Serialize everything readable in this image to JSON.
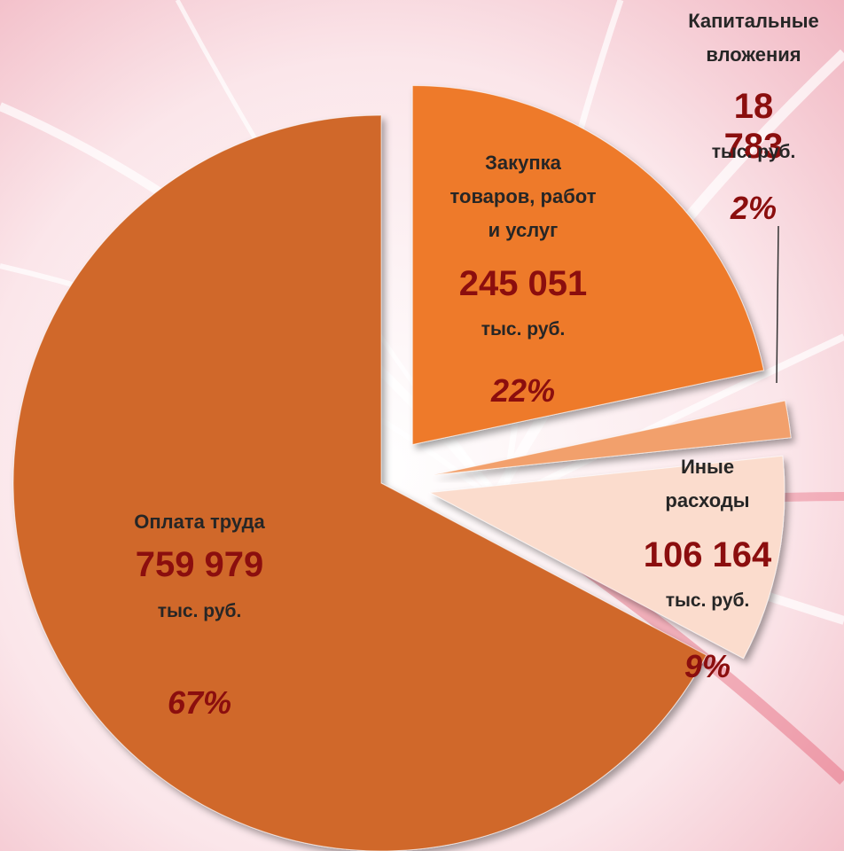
{
  "chart_data": {
    "type": "pie",
    "categories": [
      "Закупка товаров, работ и услуг",
      "Капитальные вложения",
      "Иные расходы",
      "Оплата труда"
    ],
    "values": [
      245051,
      18783,
      106164,
      759979
    ],
    "value_labels": [
      "245 051",
      "18 783",
      "106 164",
      "759 979"
    ],
    "unit": "тыс. руб.",
    "percents": [
      22,
      2,
      9,
      67
    ],
    "percent_labels": [
      "22%",
      "2%",
      "9%",
      "67%"
    ],
    "colors": [
      "#ee7a2c",
      "#f2a06c",
      "#fbdccd",
      "#d0682b"
    ]
  }
}
